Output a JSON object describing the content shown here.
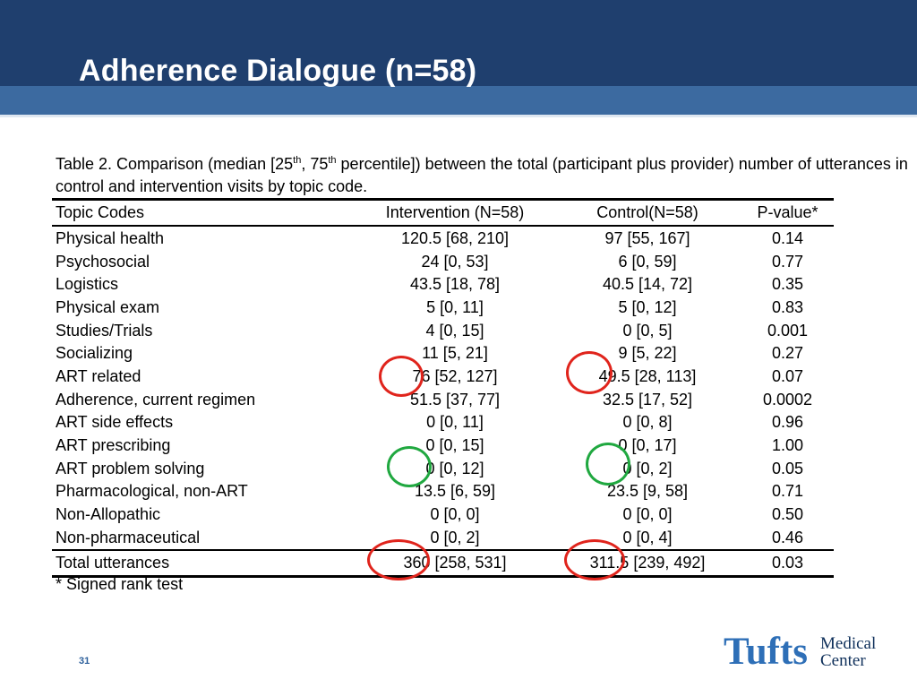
{
  "slide": {
    "title": "Adherence Dialogue (n=58)",
    "page_number": "31"
  },
  "caption": {
    "part1": "Table 2. Comparison (median [25",
    "sup1": "th",
    "part2": ", 75",
    "sup2": "th",
    "part3": " percentile]) between the total (participant plus provider) number of utterances in control and intervention visits by topic code."
  },
  "table": {
    "headers": [
      "Topic Codes",
      "Intervention (N=58)",
      "Control(N=58)",
      "P-value*"
    ],
    "rows": [
      {
        "topic": "Physical health",
        "intervention": "120.5 [68, 210]",
        "control": "97 [55, 167]",
        "p": "0.14"
      },
      {
        "topic": "Psychosocial",
        "intervention": "24 [0, 53]",
        "control": "6 [0, 59]",
        "p": "0.77"
      },
      {
        "topic": "Logistics",
        "intervention": "43.5 [18, 78]",
        "control": "40.5 [14, 72]",
        "p": "0.35"
      },
      {
        "topic": "Physical exam",
        "intervention": "5 [0, 11]",
        "control": "5 [0, 12]",
        "p": "0.83"
      },
      {
        "topic": "Studies/Trials",
        "intervention": "4 [0, 15]",
        "control": "0 [0, 5]",
        "p": "0.001"
      },
      {
        "topic": "Socializing",
        "intervention": "11 [5, 21]",
        "control": "9 [5, 22]",
        "p": "0.27"
      },
      {
        "topic": "ART related",
        "intervention": "76 [52, 127]",
        "control": "49.5 [28, 113]",
        "p": "0.07"
      },
      {
        "topic": "Adherence, current regimen",
        "intervention": "51.5 [37, 77]",
        "control": "32.5 [17, 52]",
        "p": "0.0002"
      },
      {
        "topic": "ART side effects",
        "intervention": "0 [0, 11]",
        "control": "0 [0, 8]",
        "p": "0.96"
      },
      {
        "topic": "ART prescribing",
        "intervention": "0 [0, 15]",
        "control": "0 [0, 17]",
        "p": "1.00"
      },
      {
        "topic": "ART problem solving",
        "intervention": "0 [0, 12]",
        "control": "0 [0, 2]",
        "p": "0.05"
      },
      {
        "topic": "Pharmacological, non-ART",
        "intervention": "13.5 [6, 59]",
        "control": "23.5 [9, 58]",
        "p": "0.71"
      },
      {
        "topic": "Non-Allopathic",
        "intervention": "0 [0, 0]",
        "control": "0 [0, 0]",
        "p": "0.50"
      },
      {
        "topic": "Non-pharmaceutical",
        "intervention": "0 [0, 2]",
        "control": "0 [0, 4]",
        "p": "0.46"
      }
    ],
    "total": {
      "topic": "Total utterances",
      "intervention": "360 [258, 531]",
      "control": "311.5 [239, 492]",
      "p": "0.03"
    }
  },
  "footnote": "*  Signed rank test",
  "logo": {
    "main": "Tufts",
    "sub_line1": "Medical",
    "sub_line2": "Center"
  },
  "colors": {
    "header_dark": "#1f3f6e",
    "header_band": "#3c6aa0",
    "highlight_red": "#e0241c",
    "highlight_green": "#20a840",
    "logo_blue": "#2e6fb7"
  }
}
